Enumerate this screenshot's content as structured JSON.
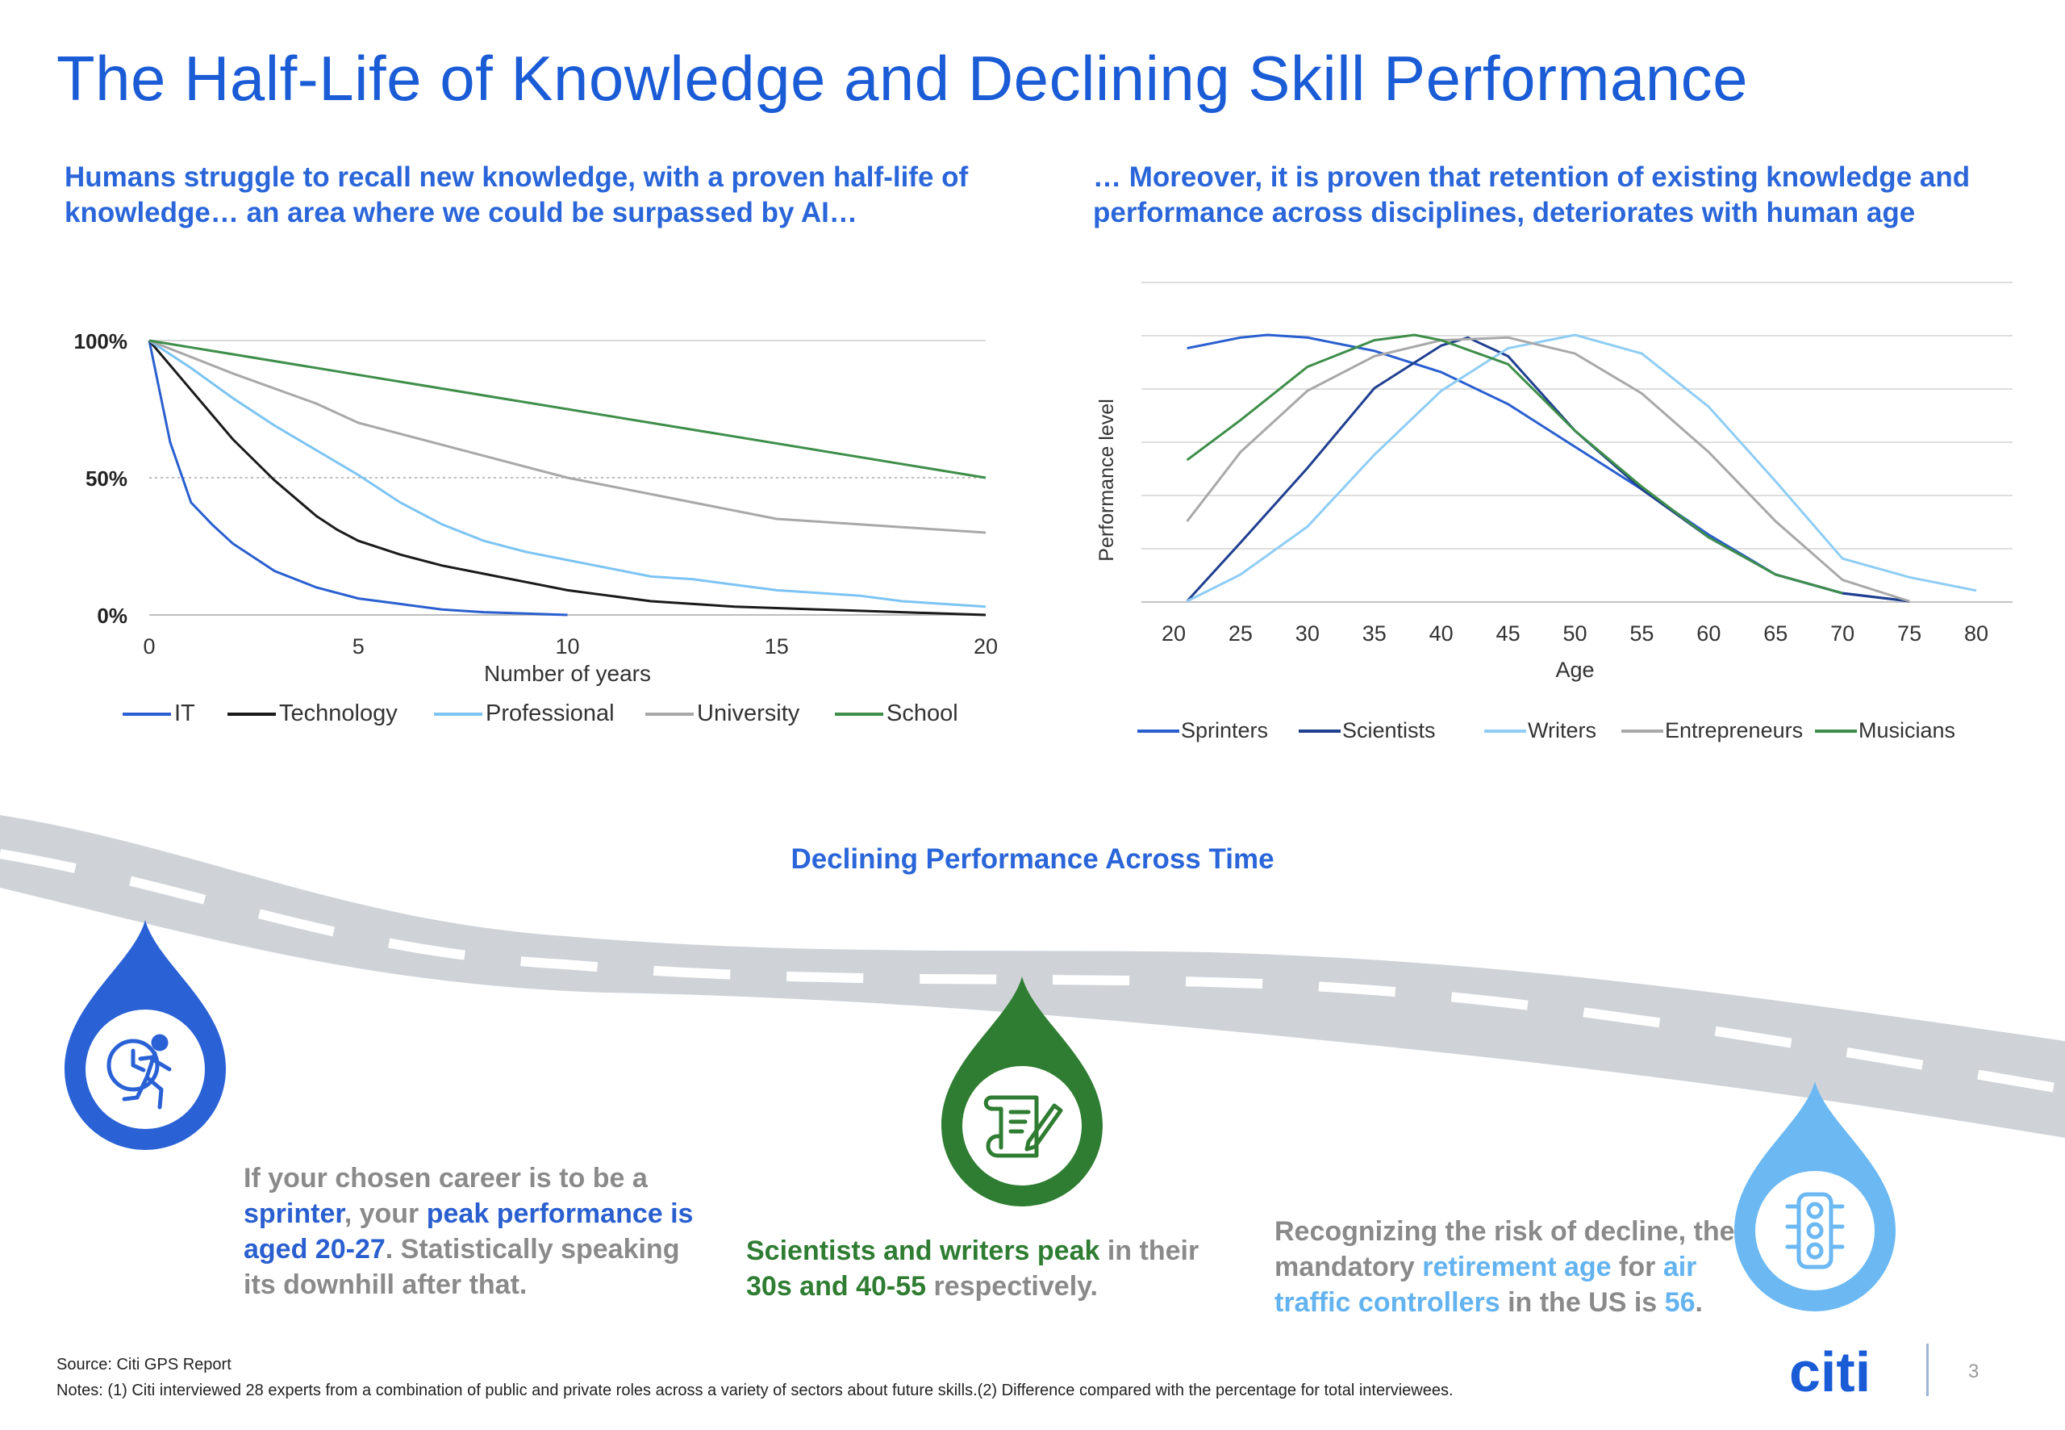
{
  "page": {
    "title": "The Half-Life of Knowledge and Declining Skill Performance",
    "left_subtitle_line1": "Humans struggle to recall new knowledge, with a proven half-life of",
    "left_subtitle_line2": "knowledge… an area where we could be surpassed by AI…",
    "right_subtitle_line1": "… Moreover, it is proven that retention of existing knowledge and",
    "right_subtitle_line2": "performance across disciplines, deteriorates with human age",
    "road_title": "Declining Performance Across Time",
    "captions": {
      "c1": {
        "a": "If your chosen career is to be a",
        "b": "sprinter",
        "c": ", your ",
        "d": "peak performance is aged 20-27",
        "e": ". Statistically speaking its downhill after that."
      },
      "c2": {
        "a": "Scientists and writers peak",
        "b": " in their ",
        "c": "30s and 40-55",
        "d": " respectively."
      },
      "c3": {
        "a": "Recognizing the risk of decline, the mandatory ",
        "b": "retirement age",
        "c": " for ",
        "d": "air traffic controllers",
        "e": " in the US is ",
        "f": "56",
        "g": "."
      }
    },
    "source": "Source: Citi GPS Report",
    "notes": "Notes: (1) Citi interviewed 28 experts from a combination of public and private roles across a variety of sectors about future skills.(2) Difference compared with the percentage for total interviewees.",
    "logo": "citi",
    "page_number": "3",
    "icons": [
      "running-clock-icon",
      "scroll-pen-icon",
      "traffic-light-icon"
    ],
    "colors": {
      "title": "#1a5bd6",
      "drop_blue": "#2a62d6",
      "drop_green": "#2f7d32",
      "drop_light": "#6bb8f2",
      "road": "#cfd3d8"
    }
  },
  "chart_data": [
    {
      "type": "line",
      "xlabel": "Number of years",
      "ylabel": "",
      "xlim": [
        0,
        20
      ],
      "ylim": [
        0,
        100
      ],
      "xticks": [
        "0",
        "5",
        "10",
        "15",
        "20"
      ],
      "yticks": [
        "0%",
        "50%",
        "100%"
      ],
      "legend_position": "bottom",
      "series": [
        {
          "name": "IT",
          "color": "#2a5fd0",
          "x": [
            0,
            0.5,
            1,
            1.5,
            2,
            3,
            4,
            5,
            6,
            7,
            8,
            9,
            10
          ],
          "y": [
            100,
            63,
            41,
            33,
            26,
            16,
            10,
            6,
            4,
            2,
            1,
            0.5,
            0
          ]
        },
        {
          "name": "Technology",
          "color": "#1a1a1a",
          "x": [
            0,
            1,
            2,
            3,
            4,
            4.5,
            5,
            6,
            7,
            8,
            9,
            10,
            11,
            12,
            13,
            14,
            15,
            16,
            17,
            18,
            19,
            20
          ],
          "y": [
            100,
            82,
            64,
            49,
            36,
            31,
            27,
            22,
            18,
            15,
            12,
            9,
            7,
            5,
            4,
            3,
            2.5,
            2,
            1.5,
            1,
            0.5,
            0
          ]
        },
        {
          "name": "Professional",
          "color": "#7cc4f4",
          "x": [
            0,
            1,
            2,
            3,
            4,
            5,
            6,
            7,
            8,
            9,
            10,
            11,
            12,
            13,
            14,
            15,
            16,
            17,
            18,
            19,
            20
          ],
          "y": [
            100,
            90,
            79,
            69,
            60,
            51,
            41,
            33,
            27,
            23,
            20,
            17,
            14,
            13,
            11,
            9,
            8,
            7,
            5,
            4,
            3
          ]
        },
        {
          "name": "University",
          "color": "#a8a8a8",
          "x": [
            0,
            2,
            4,
            5,
            6,
            8,
            10,
            12,
            14,
            15,
            16,
            18,
            20
          ],
          "y": [
            100,
            88,
            77,
            70,
            66,
            58,
            50,
            44,
            38,
            35,
            34,
            32,
            30
          ]
        },
        {
          "name": "School",
          "color": "#3e8e4a",
          "x": [
            0,
            20
          ],
          "y": [
            100,
            50
          ]
        }
      ],
      "reference_line": {
        "y": 50,
        "style": "dotted"
      }
    },
    {
      "type": "line",
      "xlabel": "Age",
      "ylabel": "Performance level",
      "xlim": [
        20,
        80
      ],
      "xticks": [
        "20",
        "25",
        "30",
        "35",
        "40",
        "45",
        "50",
        "55",
        "60",
        "65",
        "70",
        "75",
        "80"
      ],
      "grid": true,
      "legend_position": "bottom",
      "series": [
        {
          "name": "Sprinters",
          "color": "#2a5fd0",
          "x": [
            21,
            25,
            27,
            30,
            35,
            40,
            45,
            50,
            55,
            60,
            65,
            70,
            75
          ],
          "y": [
            95,
            99,
            100,
            99,
            94,
            86,
            74,
            58,
            42,
            25,
            10,
            3,
            0
          ]
        },
        {
          "name": "Scientists",
          "color": "#1f3f8f",
          "x": [
            21,
            25,
            30,
            35,
            40,
            42,
            45,
            50,
            55,
            60,
            65,
            70,
            75
          ],
          "y": [
            0,
            22,
            50,
            80,
            96,
            99,
            92,
            64,
            42,
            24,
            10,
            3,
            0
          ]
        },
        {
          "name": "Writers",
          "color": "#8fcdf5",
          "x": [
            21,
            25,
            30,
            35,
            40,
            45,
            50,
            55,
            60,
            65,
            70,
            75,
            80
          ],
          "y": [
            0,
            10,
            28,
            55,
            79,
            95,
            100,
            93,
            73,
            45,
            16,
            9,
            4
          ]
        },
        {
          "name": "Entrepreneurs",
          "color": "#a8a8a8",
          "x": [
            21,
            25,
            30,
            35,
            40,
            45,
            50,
            55,
            60,
            65,
            70,
            75
          ],
          "y": [
            30,
            56,
            79,
            92,
            98,
            99,
            93,
            78,
            56,
            30,
            8,
            0
          ]
        },
        {
          "name": "Musicians",
          "color": "#3e8e4a",
          "x": [
            21,
            25,
            30,
            35,
            38,
            40,
            45,
            50,
            55,
            60,
            65,
            70
          ],
          "y": [
            53,
            68,
            88,
            98,
            100,
            98,
            89,
            64,
            43,
            24,
            10,
            3
          ]
        }
      ]
    }
  ]
}
